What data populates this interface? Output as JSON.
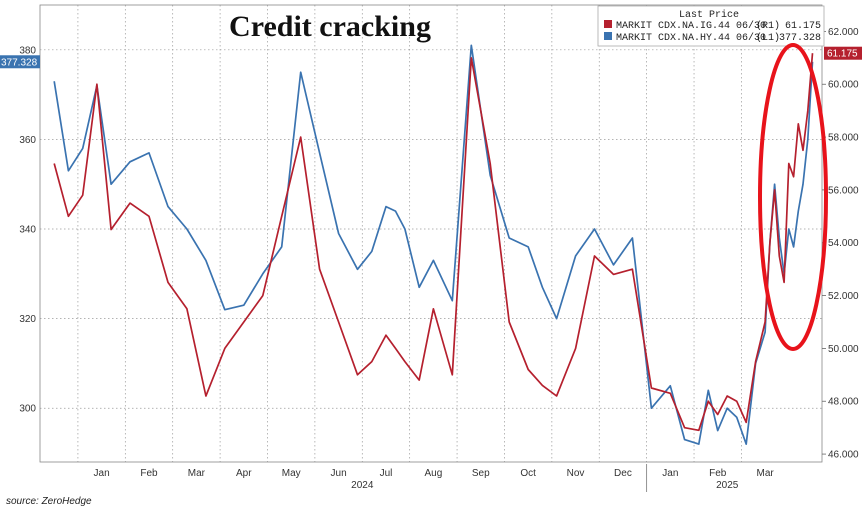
{
  "chart_data": {
    "type": "line",
    "title": "Credit cracking",
    "source": "source: ZeroHedge",
    "legend": {
      "header": "Last Price",
      "placement": "top-right",
      "entries": [
        {
          "name": "MARKIT CDX.NA.IG.44 06/30",
          "axis": "(R1)",
          "value": "61.175",
          "color": "#b5202e"
        },
        {
          "name": "MARKIT CDX.NA.HY.44 06/30",
          "axis": "(L1)",
          "value": "377.328",
          "color": "#3a73b0"
        }
      ]
    },
    "x_labels": [
      "Jan",
      "Feb",
      "Mar",
      "Apr",
      "May",
      "Jun",
      "Jul",
      "Aug",
      "Sep",
      "Oct",
      "Nov",
      "Dec",
      "Jan",
      "Feb",
      "Mar"
    ],
    "year_labels": [
      "2024",
      "2025"
    ],
    "left_axis": {
      "ylim": [
        288,
        390
      ],
      "ticks": [
        "300",
        "320",
        "340",
        "360",
        "380"
      ]
    },
    "right_axis": {
      "ylim": [
        45.7,
        63
      ],
      "ticks": [
        "46.000",
        "48.000",
        "50.000",
        "52.000",
        "54.000",
        "56.000",
        "58.000",
        "60.000",
        "62.000"
      ]
    },
    "last_value_flags": {
      "left": "377.328",
      "right": "61.175"
    },
    "series": [
      {
        "name": "MARKIT CDX.NA.HY.44 06/30",
        "axis": "left",
        "color": "#3a73b0",
        "x": [
          0.0,
          0.3,
          0.6,
          0.9,
          1.2,
          1.6,
          2.0,
          2.4,
          2.8,
          3.2,
          3.6,
          4.0,
          4.4,
          4.8,
          5.2,
          5.6,
          6.0,
          6.4,
          6.7,
          7.0,
          7.2,
          7.4,
          7.7,
          8.0,
          8.4,
          8.8,
          9.2,
          9.6,
          10.0,
          10.3,
          10.6,
          11.0,
          11.4,
          11.8,
          12.2,
          12.6,
          13.0,
          13.3,
          13.6,
          13.8,
          14.0,
          14.2,
          14.4,
          14.6,
          14.8
        ],
        "values": [
          373,
          353,
          358,
          372,
          350,
          355,
          357,
          345,
          340,
          333,
          322,
          323,
          330,
          336,
          375,
          357,
          339,
          331,
          335,
          345,
          344,
          340,
          327,
          333,
          324,
          381,
          352,
          338,
          336,
          327,
          320,
          334,
          340,
          332,
          338,
          300,
          305,
          293,
          292,
          304,
          295,
          300,
          298,
          292,
          310
        ],
        "x_tail": [
          15.0,
          15.1,
          15.2,
          15.3,
          15.4,
          15.5,
          15.6,
          15.7,
          15.8,
          15.9,
          16.0
        ],
        "values_tail": [
          317,
          337,
          350,
          338,
          330,
          340,
          336,
          344,
          350,
          360,
          377.328
        ]
      },
      {
        "name": "MARKIT CDX.NA.IG.44 06/30",
        "axis": "right",
        "color": "#b5202e",
        "x": [
          0.0,
          0.3,
          0.6,
          0.9,
          1.2,
          1.6,
          2.0,
          2.4,
          2.8,
          3.2,
          3.6,
          4.0,
          4.4,
          4.8,
          5.2,
          5.6,
          6.0,
          6.4,
          6.7,
          7.0,
          7.2,
          7.4,
          7.7,
          8.0,
          8.4,
          8.8,
          9.2,
          9.6,
          10.0,
          10.3,
          10.6,
          11.0,
          11.4,
          11.8,
          12.2,
          12.6,
          13.0,
          13.3,
          13.6,
          13.8,
          14.0,
          14.2,
          14.4,
          14.6,
          14.8
        ],
        "values": [
          57.0,
          55.0,
          55.8,
          60.0,
          54.5,
          55.5,
          55.0,
          52.5,
          51.5,
          48.2,
          50.0,
          51.0,
          52.0,
          55.0,
          58.0,
          53.0,
          51.0,
          49.0,
          49.5,
          50.5,
          50.0,
          49.5,
          48.8,
          51.5,
          49.0,
          61.0,
          57.0,
          51.0,
          49.2,
          48.6,
          48.2,
          50.0,
          53.5,
          52.8,
          53.0,
          48.5,
          48.3,
          47.0,
          46.9,
          48.0,
          47.5,
          48.2,
          48.0,
          47.2,
          49.5
        ],
        "x_tail": [
          15.0,
          15.1,
          15.2,
          15.3,
          15.4,
          15.5,
          15.6,
          15.7,
          15.8,
          15.9,
          16.0
        ],
        "values_tail": [
          51.0,
          54.0,
          56.0,
          53.5,
          52.5,
          57.0,
          56.5,
          58.5,
          57.5,
          59.0,
          61.175
        ]
      }
    ]
  }
}
